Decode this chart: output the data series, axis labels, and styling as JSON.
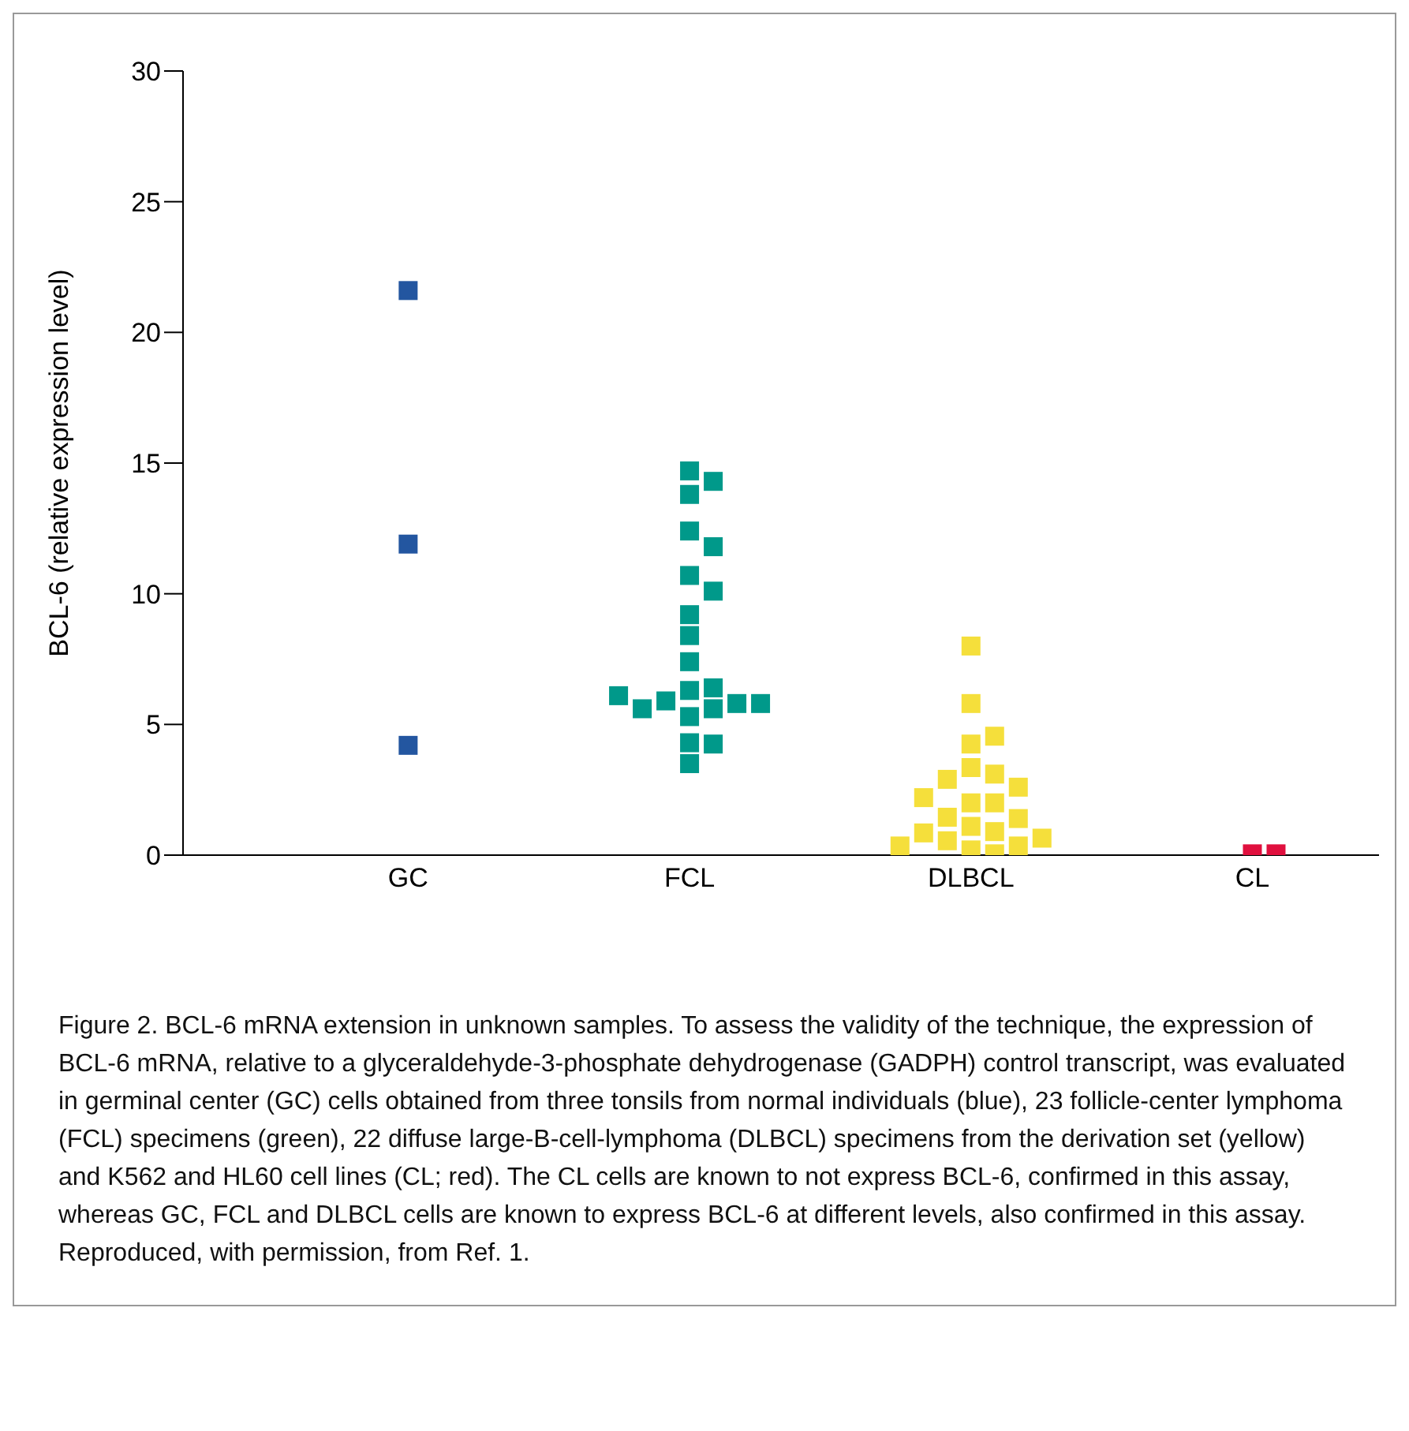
{
  "chart_data": {
    "type": "scatter",
    "ylabel": "BCL-6 (relative expression level)",
    "marker": "square",
    "grid": false,
    "legend": false,
    "categories": [
      "GC",
      "FCL",
      "DLBCL",
      "CL"
    ],
    "ylim": [
      0,
      30
    ],
    "yticks": [
      0,
      5,
      10,
      15,
      20,
      25,
      30
    ],
    "series": [
      {
        "color": "#2356a0",
        "x": [
          "GC",
          "GC",
          "GC"
        ],
        "values": [
          21.6,
          11.9,
          4.2
        ]
      },
      {
        "color": "#00998a",
        "x": [
          "FCL",
          "FCL",
          "FCL",
          "FCL",
          "FCL",
          "FCL",
          "FCL",
          "FCL",
          "FCL",
          "FCL",
          "FCL",
          "FCL",
          "FCL",
          "FCL",
          "FCL",
          "FCL",
          "FCL",
          "FCL",
          "FCL",
          "FCL",
          "FCL",
          "FCL"
        ],
        "values": [
          14.7,
          14.3,
          13.8,
          12.4,
          11.8,
          10.7,
          10.1,
          9.2,
          8.4,
          7.4,
          6.3,
          6.4,
          5.9,
          5.8,
          5.6,
          5.3,
          5.6,
          5.8,
          6.1,
          4.3,
          4.25,
          3.5
        ]
      },
      {
        "color": "#f5df3b",
        "x": [
          "DLBCL",
          "DLBCL",
          "DLBCL",
          "DLBCL",
          "DLBCL",
          "DLBCL",
          "DLBCL",
          "DLBCL",
          "DLBCL",
          "DLBCL",
          "DLBCL",
          "DLBCL",
          "DLBCL",
          "DLBCL",
          "DLBCL",
          "DLBCL",
          "DLBCL",
          "DLBCL",
          "DLBCL",
          "DLBCL",
          "DLBCL",
          "DLBCL"
        ],
        "values": [
          8.0,
          5.8,
          4.25,
          4.55,
          3.35,
          3.1,
          2.9,
          2.6,
          2.0,
          2.0,
          2.2,
          1.45,
          1.4,
          1.1,
          0.9,
          0.85,
          0.55,
          0.65,
          0.35,
          0.35,
          0.2,
          0.05
        ]
      },
      {
        "color": "#e0103e",
        "x": [
          "CL",
          "CL"
        ],
        "values": [
          0.05,
          0.05
        ]
      }
    ],
    "annotations": [
      "Figure 2. BCL-6 mRNA extension in unknown samples. To assess the validity of the technique, the expression of BCL-6 mRNA, relative to a glyceraldehyde-3-phosphate dehydrogenase (GADPH) control transcript, was evaluated in germinal center (GC) cells obtained from three tonsils from normal individuals (blue), 23 follicle-center lymphoma (FCL) specimens (green), 22 diffuse large-B-cell-lymphoma (DLBCL) specimens from the derivation set (yellow) and K562 and HL60 cell lines (CL; red). The CL cells are known to not express BCL-6, confirmed in this assay, whereas GC, FCL and DLBCL cells are known to express BCL-6 at different levels, also confirmed in this assay. Reproduced, with permission, from Ref. 1."
    ]
  }
}
